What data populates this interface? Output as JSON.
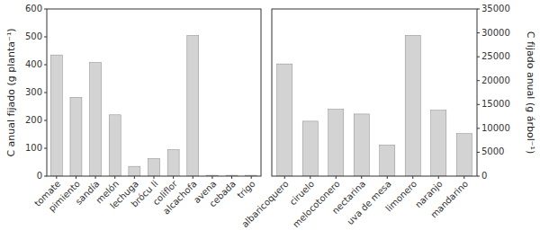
{
  "chart_data": [
    {
      "type": "bar",
      "categories": [
        "tomate",
        "pimiento",
        "sandía",
        "melón",
        "lechuga",
        "brócu                                                                                li",
        "coliflor",
        "alcachofa",
        "avena",
        "cebada",
        "trigo"
      ],
      "values": [
        435,
        283,
        408,
        220,
        35,
        63,
        95,
        505,
        3,
        3,
        3
      ],
      "y_label": "C anual fijado (g planta⁻¹)",
      "ylim": [
        0,
        600
      ],
      "yticks": [
        0,
        100,
        200,
        300,
        400,
        500,
        600
      ],
      "color": "#d3d3d3"
    },
    {
      "type": "bar",
      "categories": [
        "albaricoquero",
        "ciruelo",
        "melocotonero",
        "nectarina",
        "uva de mesa",
        "limonero",
        "naranjo",
        "mandarino"
      ],
      "values": [
        23500,
        11500,
        14000,
        13000,
        6500,
        29500,
        13800,
        8900
      ],
      "y_label": "C fijado anual (g árbol⁻¹)",
      "ylim": [
        0,
        35000
      ],
      "yticks": [
        0,
        5000,
        10000,
        15000,
        20000,
        25000,
        30000,
        35000
      ],
      "color": "#d3d3d3"
    }
  ]
}
